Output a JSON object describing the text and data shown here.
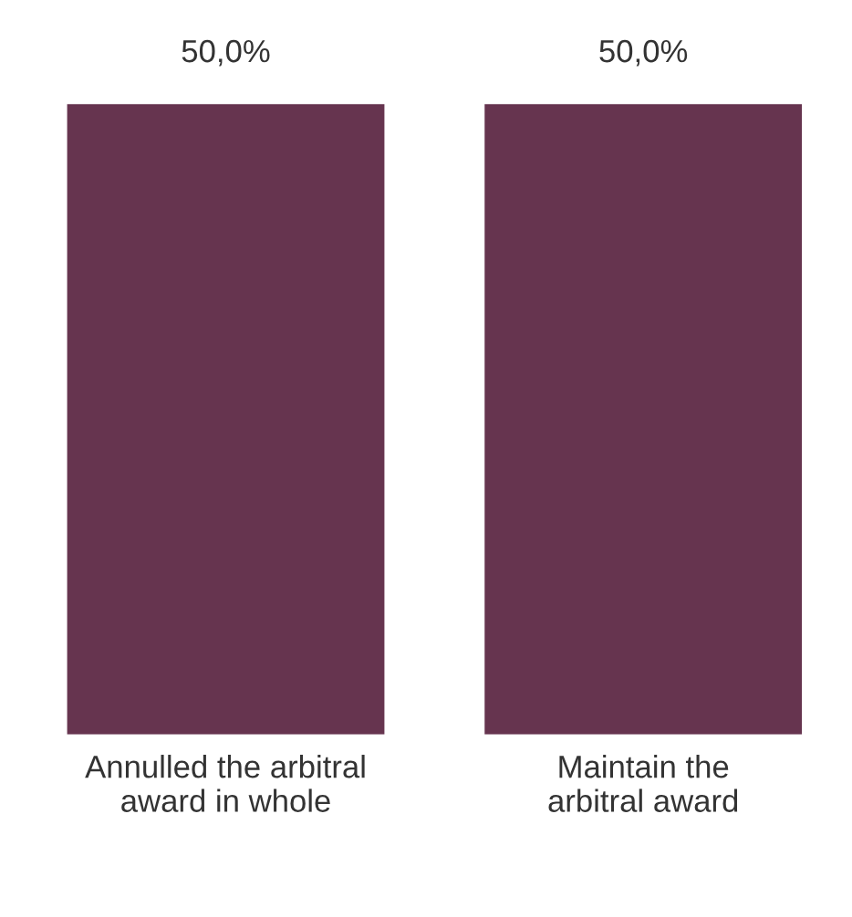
{
  "chart_data": {
    "type": "bar",
    "categories": [
      "Annulled the arbitral award in whole",
      "Maintain the arbitral award"
    ],
    "values": [
      50,
      50
    ],
    "value_labels": [
      "50,0%",
      "50,0%"
    ],
    "color": "#66344f",
    "grid": false,
    "legend": false
  }
}
